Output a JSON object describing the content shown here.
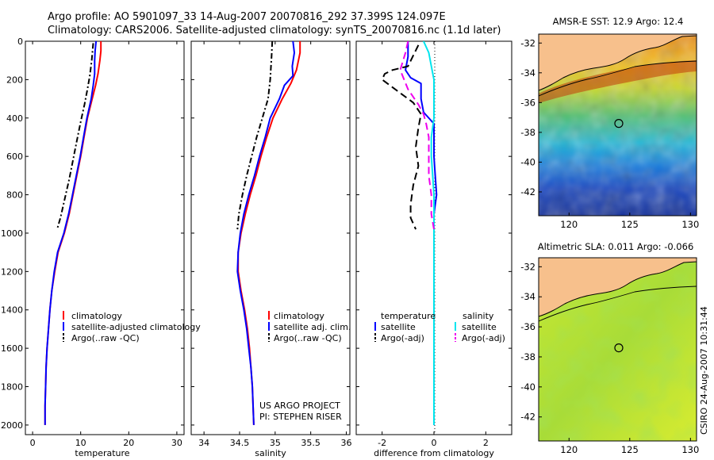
{
  "figure": {
    "title_line1": "Argo profile: AO 5901097_33 14-Aug-2007 20070816_292 37.399S 124.097E",
    "title_line2": "Climatology: CARS2006. Satellite-adjusted climatology: synTS_20070816.nc (1.1d later)",
    "credit_line1": "US ARGO PROJECT",
    "credit_line2": "PI: STEPHEN RISER",
    "timestamp": "CSIRO 24-Aug-2007 10:31:44"
  },
  "colors": {
    "climatology": "#ff0000",
    "satellite": "#0000ff",
    "argo": "#000000",
    "salinity_satellite": "#00e5ee",
    "salinity_argo": "#ee00ee",
    "land": "#f7c08c"
  },
  "chart_data": [
    {
      "type": "line",
      "id": "temperature",
      "xlabel": "temperature",
      "ylabel": "",
      "xlim": [
        -1.5,
        31.5
      ],
      "ylim": [
        2050,
        0
      ],
      "xticks": [
        "0",
        "10",
        "20",
        "30"
      ],
      "yticks": [
        "0",
        "200",
        "400",
        "600",
        "800",
        "1000",
        "1200",
        "1400",
        "1600",
        "1800",
        "2000"
      ],
      "legend": [
        "climatology",
        "satellite-adjusted climatology",
        "Argo(..raw -QC)"
      ],
      "series": [
        {
          "name": "climatology",
          "color": "#ff0000",
          "dash": "",
          "points": [
            [
              14.2,
              0
            ],
            [
              14.2,
              50
            ],
            [
              14.0,
              100
            ],
            [
              13.6,
              170
            ],
            [
              13.1,
              230
            ],
            [
              12.4,
              300
            ],
            [
              11.4,
              400
            ],
            [
              10.7,
              500
            ],
            [
              10.0,
              600
            ],
            [
              9.2,
              700
            ],
            [
              8.4,
              800
            ],
            [
              7.6,
              900
            ],
            [
              6.6,
              1000
            ],
            [
              5.3,
              1100
            ],
            [
              4.6,
              1200
            ],
            [
              4.0,
              1300
            ],
            [
              3.6,
              1400
            ],
            [
              3.3,
              1500
            ],
            [
              3.0,
              1600
            ],
            [
              2.8,
              1700
            ],
            [
              2.7,
              1800
            ],
            [
              2.6,
              1900
            ],
            [
              2.6,
              2000
            ]
          ]
        },
        {
          "name": "satellite-adjusted climatology",
          "color": "#0000ff",
          "dash": "",
          "points": [
            [
              13.2,
              0
            ],
            [
              13.0,
              50
            ],
            [
              12.9,
              100
            ],
            [
              12.9,
              170
            ],
            [
              12.6,
              230
            ],
            [
              12.2,
              300
            ],
            [
              11.3,
              400
            ],
            [
              10.6,
              500
            ],
            [
              9.9,
              600
            ],
            [
              9.1,
              700
            ],
            [
              8.3,
              800
            ],
            [
              7.5,
              900
            ],
            [
              6.5,
              1000
            ],
            [
              5.2,
              1100
            ],
            [
              4.5,
              1200
            ],
            [
              4.0,
              1300
            ],
            [
              3.6,
              1400
            ],
            [
              3.3,
              1500
            ],
            [
              3.0,
              1600
            ],
            [
              2.8,
              1700
            ],
            [
              2.7,
              1800
            ],
            [
              2.6,
              1900
            ],
            [
              2.6,
              2000
            ]
          ]
        },
        {
          "name": "Argo(..raw -QC)",
          "color": "#000000",
          "dash": "7 3 2 3",
          "points": [
            [
              12.6,
              10
            ],
            [
              12.3,
              100
            ],
            [
              11.9,
              180
            ],
            [
              11.4,
              250
            ],
            [
              10.8,
              330
            ],
            [
              10.0,
              420
            ],
            [
              9.2,
              520
            ],
            [
              8.4,
              620
            ],
            [
              7.6,
              720
            ],
            [
              6.7,
              820
            ],
            [
              5.8,
              920
            ],
            [
              5.1,
              980
            ]
          ]
        }
      ]
    },
    {
      "type": "line",
      "id": "salinity",
      "xlabel": "salinity",
      "ylabel": "",
      "xlim": [
        33.82,
        36.05
      ],
      "ylim": [
        2050,
        0
      ],
      "xticks": [
        "34",
        "34.5",
        "35",
        "35.5",
        "36"
      ],
      "legend": [
        "climatology",
        "satellite adj. clim.",
        "Argo(..raw -QC)"
      ],
      "series": [
        {
          "name": "climatology",
          "color": "#ff0000",
          "dash": "",
          "points": [
            [
              35.35,
              0
            ],
            [
              35.35,
              60
            ],
            [
              35.3,
              150
            ],
            [
              35.22,
              220
            ],
            [
              35.1,
              300
            ],
            [
              34.97,
              400
            ],
            [
              34.88,
              500
            ],
            [
              34.8,
              600
            ],
            [
              34.73,
              700
            ],
            [
              34.65,
              800
            ],
            [
              34.58,
              900
            ],
            [
              34.52,
              1000
            ],
            [
              34.48,
              1100
            ],
            [
              34.48,
              1200
            ],
            [
              34.52,
              1300
            ],
            [
              34.57,
              1400
            ],
            [
              34.61,
              1500
            ],
            [
              34.64,
              1600
            ],
            [
              34.66,
              1700
            ],
            [
              34.68,
              1800
            ],
            [
              34.69,
              1900
            ],
            [
              34.7,
              2000
            ]
          ]
        },
        {
          "name": "satellite adj. clim.",
          "color": "#0000ff",
          "dash": "",
          "points": [
            [
              35.25,
              0
            ],
            [
              35.27,
              60
            ],
            [
              35.24,
              130
            ],
            [
              35.25,
              180
            ],
            [
              35.13,
              230
            ],
            [
              35.06,
              300
            ],
            [
              34.93,
              400
            ],
            [
              34.86,
              500
            ],
            [
              34.78,
              600
            ],
            [
              34.71,
              700
            ],
            [
              34.63,
              800
            ],
            [
              34.56,
              900
            ],
            [
              34.51,
              1000
            ],
            [
              34.48,
              1100
            ],
            [
              34.47,
              1200
            ],
            [
              34.51,
              1300
            ],
            [
              34.56,
              1400
            ],
            [
              34.6,
              1500
            ],
            [
              34.63,
              1600
            ],
            [
              34.66,
              1700
            ],
            [
              34.68,
              1800
            ],
            [
              34.69,
              1900
            ],
            [
              34.7,
              2000
            ]
          ]
        },
        {
          "name": "Argo(..raw -QC)",
          "color": "#000000",
          "dash": "7 3 2 3",
          "points": [
            [
              34.96,
              0
            ],
            [
              34.95,
              80
            ],
            [
              34.93,
              200
            ],
            [
              34.9,
              300
            ],
            [
              34.82,
              400
            ],
            [
              34.74,
              500
            ],
            [
              34.67,
              600
            ],
            [
              34.6,
              700
            ],
            [
              34.54,
              800
            ],
            [
              34.49,
              900
            ],
            [
              34.47,
              980
            ]
          ]
        }
      ]
    },
    {
      "type": "line",
      "id": "difference",
      "xlabel": "difference from climatology",
      "ylabel": "",
      "xlim": [
        -3.0,
        3.0
      ],
      "ylim": [
        2050,
        0
      ],
      "xticks": [
        "-2",
        "0",
        "2"
      ],
      "legend_headers": [
        "temperature",
        "salinity"
      ],
      "legend": [
        "satellite",
        "Argo(-adj)",
        "satellite",
        "Argo(-adj)"
      ],
      "series": [
        {
          "name": "temperature satellite",
          "color": "#0000ff",
          "dash": "",
          "points": [
            [
              -1.0,
              0
            ],
            [
              -1.0,
              80
            ],
            [
              -1.1,
              150
            ],
            [
              -0.9,
              190
            ],
            [
              -0.5,
              220
            ],
            [
              -0.5,
              300
            ],
            [
              -0.4,
              370
            ],
            [
              0.0,
              430
            ],
            [
              0.0,
              600
            ],
            [
              0.05,
              700
            ],
            [
              0.1,
              800
            ],
            [
              0.0,
              900
            ],
            [
              0.0,
              1000
            ],
            [
              0.0,
              1200
            ],
            [
              0.0,
              1600
            ],
            [
              0.0,
              2000
            ]
          ]
        },
        {
          "name": "temperature Argo(-adj)",
          "color": "#000000",
          "dash": "9 5",
          "points": [
            [
              -0.6,
              20
            ],
            [
              -1.0,
              130
            ],
            [
              -1.6,
              150
            ],
            [
              -1.9,
              170
            ],
            [
              -2.0,
              200
            ],
            [
              -1.4,
              260
            ],
            [
              -0.8,
              320
            ],
            [
              -0.5,
              380
            ],
            [
              -0.6,
              450
            ],
            [
              -0.7,
              550
            ],
            [
              -0.6,
              650
            ],
            [
              -0.8,
              750
            ],
            [
              -0.9,
              850
            ],
            [
              -0.9,
              920
            ],
            [
              -0.7,
              980
            ]
          ]
        },
        {
          "name": "salinity satellite",
          "color": "#00e5ee",
          "dash": "",
          "points": [
            [
              -0.4,
              0
            ],
            [
              -0.2,
              60
            ],
            [
              -0.1,
              130
            ],
            [
              0.0,
              200
            ],
            [
              0.0,
              300
            ],
            [
              0.0,
              400
            ],
            [
              -0.1,
              500
            ],
            [
              -0.1,
              600
            ],
            [
              -0.05,
              700
            ],
            [
              0.0,
              800
            ],
            [
              0.0,
              900
            ],
            [
              0.0,
              1000
            ],
            [
              0.0,
              1400
            ],
            [
              0.0,
              2000
            ]
          ]
        },
        {
          "name": "salinity Argo(-adj)",
          "color": "#ee00ee",
          "dash": "9 5",
          "points": [
            [
              -1.0,
              0
            ],
            [
              -1.1,
              60
            ],
            [
              -1.3,
              150
            ],
            [
              -1.0,
              250
            ],
            [
              -0.6,
              330
            ],
            [
              -0.4,
              380
            ],
            [
              -0.3,
              430
            ],
            [
              -0.2,
              500
            ],
            [
              -0.2,
              600
            ],
            [
              -0.2,
              700
            ],
            [
              -0.1,
              800
            ],
            [
              -0.1,
              900
            ],
            [
              0.0,
              980
            ]
          ]
        }
      ]
    },
    {
      "type": "heatmap",
      "id": "sst-map",
      "title": "AMSR-E SST: 12.9 Argo: 12.4",
      "xlim": [
        117.5,
        130.5
      ],
      "ylim": [
        -43.6,
        -31.4
      ],
      "xticks": [
        "120",
        "125",
        "130"
      ],
      "yticks": [
        "-32",
        "-34",
        "-36",
        "-38",
        "-40",
        "-42"
      ],
      "marker": [
        124.097,
        -37.399
      ]
    },
    {
      "type": "heatmap",
      "id": "sla-map",
      "title": "Altimetric SLA: 0.011 Argo: -0.066",
      "xlim": [
        117.5,
        130.5
      ],
      "ylim": [
        -43.6,
        -31.4
      ],
      "xticks": [
        "120",
        "125",
        "130"
      ],
      "yticks": [
        "-32",
        "-34",
        "-36",
        "-38",
        "-40",
        "-42"
      ],
      "marker": [
        124.097,
        -37.399
      ]
    }
  ]
}
